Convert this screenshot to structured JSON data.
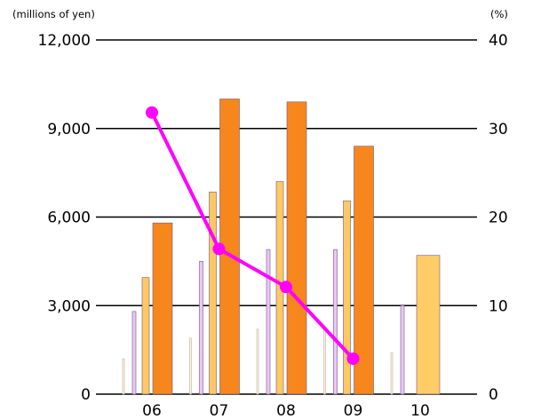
{
  "chart_data": {
    "type": "bar",
    "categories": [
      "06",
      "07",
      "08",
      "09",
      "10"
    ],
    "y_left": {
      "unit_label": "(millions of yen)",
      "range": [
        0,
        12000
      ],
      "ticks": [
        "0",
        "3,000",
        "6,000",
        "9,000",
        "12,000"
      ]
    },
    "y_right": {
      "unit_label": "(%)",
      "range": [
        0,
        40
      ],
      "ticks": [
        "0",
        "10",
        "20",
        "30",
        "40"
      ]
    },
    "grid": true,
    "series": [
      {
        "type": "bar",
        "axis": "left",
        "color": "#fff0dc",
        "values": [
          1200,
          1900,
          2200,
          2200,
          1400
        ]
      },
      {
        "type": "bar",
        "axis": "left",
        "color": "#ecc6f4",
        "values": [
          2800,
          4500,
          4900,
          4900,
          3000
        ]
      },
      {
        "type": "bar",
        "axis": "left",
        "color": "#ffc864",
        "values": [
          3950,
          6850,
          7200,
          6550,
          null
        ]
      },
      {
        "type": "bar",
        "axis": "left",
        "color": "#f7861d",
        "values": [
          5800,
          10000,
          9900,
          8400,
          null
        ]
      },
      {
        "type": "bar",
        "axis": "left",
        "color": "#ffcc66",
        "values": [
          null,
          null,
          null,
          null,
          4700
        ]
      },
      {
        "type": "line",
        "axis": "right",
        "color": "#ff00ff",
        "values": [
          31.8,
          16.4,
          12.1,
          4.0,
          null
        ]
      }
    ]
  }
}
